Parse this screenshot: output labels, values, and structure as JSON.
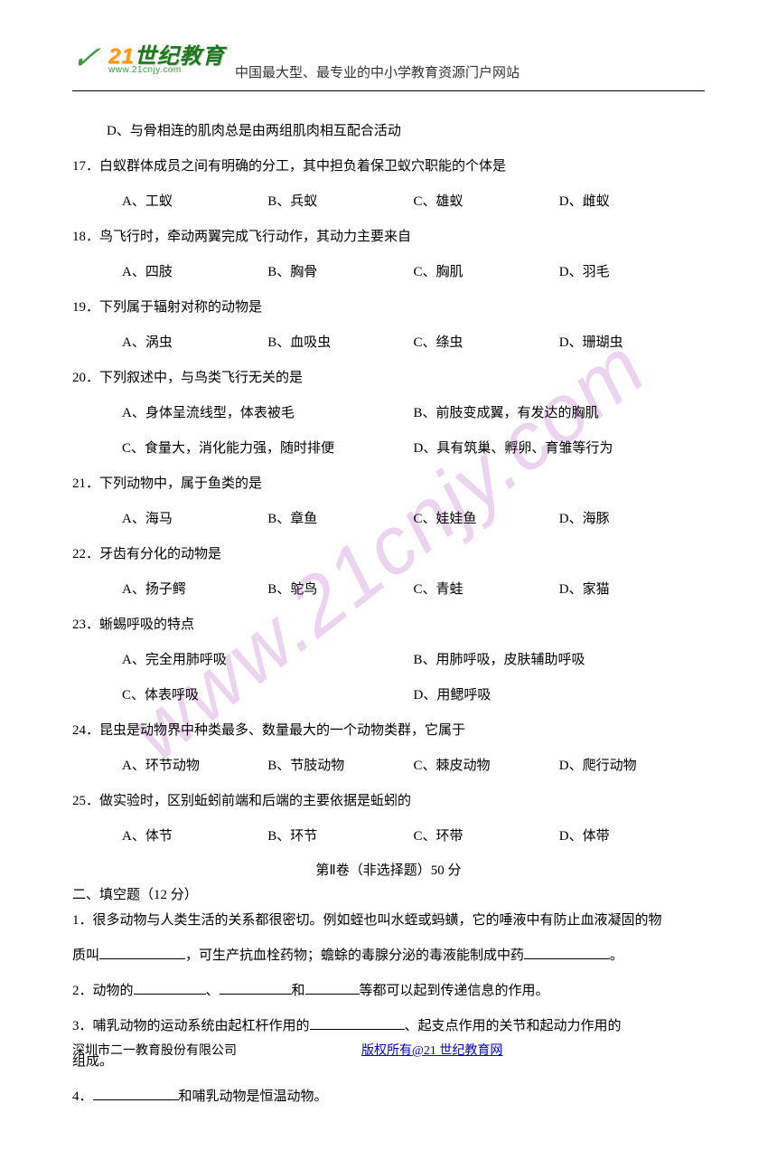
{
  "header": {
    "logo_main": "世纪教育",
    "logo_num": "21",
    "logo_url": "www.21cnjy.com",
    "tagline": "中国最大型、最专业的中小学教育资源门户网站"
  },
  "watermark": "www.21cnjy.com",
  "lines": [
    {
      "cls": "indent1",
      "text": "D、与骨相连的肌肉总是由两组肌肉相互配合活动"
    },
    {
      "cls": "",
      "text": "17．白蚁群体成员之间有明确的分工，其中担负着保卫蚁穴职能的个体是"
    },
    {
      "cls": "opts4",
      "opts": [
        "A、工蚁",
        "B、兵蚁",
        "C、雄蚁",
        "D、雌蚁"
      ]
    },
    {
      "cls": "",
      "text": "18．鸟飞行时，牵动两翼完成飞行动作，其动力主要来自"
    },
    {
      "cls": "opts4",
      "opts": [
        "A、四肢",
        "B、胸骨",
        "C、胸肌",
        "D、羽毛"
      ]
    },
    {
      "cls": "",
      "text": "19．下列属于辐射对称的动物是"
    },
    {
      "cls": "opts4",
      "opts": [
        "A、涡虫",
        "B、血吸虫",
        "C、绦虫",
        "D、珊瑚虫"
      ]
    },
    {
      "cls": "",
      "text": "20．下列叙述中，与鸟类飞行无关的是"
    },
    {
      "cls": "opts2",
      "opts": [
        "A、身体呈流线型，体表被毛",
        "B、前肢变成翼，有发达的胸肌"
      ]
    },
    {
      "cls": "opts2",
      "opts": [
        "C、食量大，消化能力强，随时排便",
        "D、具有筑巢、孵卵、育雏等行为"
      ]
    },
    {
      "cls": "",
      "text": "21．下列动物中，属于鱼类的是"
    },
    {
      "cls": "opts4",
      "opts": [
        "A、海马",
        "B、章鱼",
        "C、娃娃鱼",
        "D、海豚"
      ]
    },
    {
      "cls": "",
      "text": "22．牙齿有分化的动物是"
    },
    {
      "cls": "opts4",
      "opts": [
        "A、扬子鳄",
        "B、鸵鸟",
        "C、青蛙",
        "D、家猫"
      ]
    },
    {
      "cls": "",
      "text": "23．蜥蜴呼吸的特点"
    },
    {
      "cls": "opts2",
      "opts": [
        "A、完全用肺呼吸",
        "B、用肺呼吸，皮肤辅助呼吸"
      ]
    },
    {
      "cls": "opts2",
      "opts": [
        "C、体表呼吸",
        "D、用鳃呼吸"
      ]
    },
    {
      "cls": "",
      "text": "24．昆虫是动物界中种类最多、数量最大的一个动物类群，它属于"
    },
    {
      "cls": "opts4",
      "opts": [
        "A、环节动物",
        "B、节肢动物",
        "C、棘皮动物",
        "D、爬行动物"
      ]
    },
    {
      "cls": "",
      "text": "25．做实验时，区别蚯蚓前端和后端的主要依据是蚯蚓的"
    },
    {
      "cls": "opts4",
      "opts": [
        "A、体节",
        "B、环节",
        "C、环带",
        "D、体带"
      ]
    }
  ],
  "section2_title": "第Ⅱ卷（非选择题）50 分",
  "section2_heading": "二、填空题（12 分）",
  "fill": {
    "q1a": "1．很多动物与人类生活的关系都很密切。例如蛭也叫水蛭或蚂蟥，它的唾液中有防止血液凝固的物",
    "q1b_pre": "质叫",
    "q1b_mid": "，可生产抗血栓药物；蟾蜍的毒腺分泌的毒液能制成中药",
    "q1b_end": "。",
    "q2_pre": "2．动物的",
    "q2_sep1": "、",
    "q2_sep2": "和",
    "q2_end": "等都可以起到传递信息的作用。",
    "q3a": "3．哺乳动物的运动系统由起杠杆作用的",
    "q3b": "、起支点作用的关节和起动力作用的",
    "q3c": "组成。",
    "q4_pre": "4．",
    "q4_end": "和哺乳动物是恒温动物。"
  },
  "footer": {
    "left": "深圳市二一教育股份有限公司",
    "right": "版权所有@21 世纪教育网"
  },
  "blanks": {
    "w90": 95,
    "w80": 80,
    "w60": 60,
    "w100": 105
  }
}
